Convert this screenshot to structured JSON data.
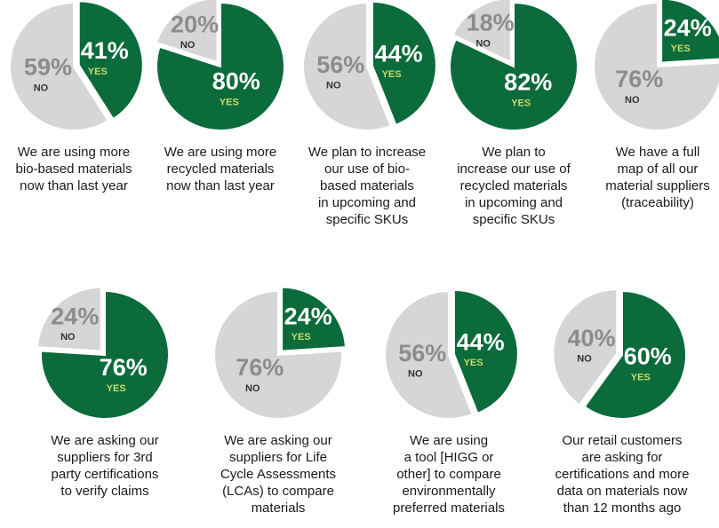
{
  "chart_data": [
    {
      "type": "pie",
      "title": [
        "We are using more",
        "bio-based materials",
        "now than last year"
      ],
      "categories": [
        "YES",
        "NO"
      ],
      "values": [
        41,
        59
      ],
      "value_labels": [
        "41%",
        "59%"
      ],
      "colors": [
        "#0b6b3a",
        "#d6d6d6"
      ]
    },
    {
      "type": "pie",
      "title": [
        "We are using more",
        "recycled materials",
        "now than last year"
      ],
      "categories": [
        "YES",
        "NO"
      ],
      "values": [
        80,
        20
      ],
      "value_labels": [
        "80%",
        "20%"
      ],
      "colors": [
        "#0b6b3a",
        "#d6d6d6"
      ]
    },
    {
      "type": "pie",
      "title": [
        "We plan to increase",
        "our use of bio-",
        "based materials",
        "in upcoming and",
        "specific SKUs"
      ],
      "categories": [
        "YES",
        "NO"
      ],
      "values": [
        44,
        56
      ],
      "value_labels": [
        "44%",
        "56%"
      ],
      "colors": [
        "#0b6b3a",
        "#d6d6d6"
      ]
    },
    {
      "type": "pie",
      "title": [
        "We plan to",
        "increase our use of",
        "recycled materials",
        "in upcoming and",
        "specific SKUs"
      ],
      "categories": [
        "YES",
        "NO"
      ],
      "values": [
        82,
        18
      ],
      "value_labels": [
        "82%",
        "18%"
      ],
      "colors": [
        "#0b6b3a",
        "#d6d6d6"
      ]
    },
    {
      "type": "pie",
      "title": [
        "We have a full",
        "map of all our",
        "material suppliers",
        "(traceability)"
      ],
      "categories": [
        "YES",
        "NO"
      ],
      "values": [
        24,
        76
      ],
      "value_labels": [
        "24%",
        "76%"
      ],
      "colors": [
        "#0b6b3a",
        "#d6d6d6"
      ]
    },
    {
      "type": "pie",
      "title": [
        "We are asking our",
        "suppliers for 3rd",
        "party certifications",
        "to verify claims"
      ],
      "categories": [
        "YES",
        "NO"
      ],
      "values": [
        76,
        24
      ],
      "value_labels": [
        "76%",
        "24%"
      ],
      "colors": [
        "#0b6b3a",
        "#d6d6d6"
      ]
    },
    {
      "type": "pie",
      "title": [
        "We are asking our",
        "suppliers for Life",
        "Cycle Assessments",
        "(LCAs) to compare",
        "materials"
      ],
      "categories": [
        "YES",
        "NO"
      ],
      "values": [
        24,
        76
      ],
      "value_labels": [
        "24%",
        "76%"
      ],
      "colors": [
        "#0b6b3a",
        "#d6d6d6"
      ]
    },
    {
      "type": "pie",
      "title": [
        "We are using",
        "a tool [HIGG or",
        "other] to compare",
        "environmentally",
        "preferred materials"
      ],
      "categories": [
        "YES",
        "NO"
      ],
      "values": [
        44,
        56
      ],
      "value_labels": [
        "44%",
        "56%"
      ],
      "colors": [
        "#0b6b3a",
        "#d6d6d6"
      ]
    },
    {
      "type": "pie",
      "title": [
        "Our retail customers",
        "are asking for",
        "certifications and more",
        "data on materials now",
        "than 12 months ago"
      ],
      "categories": [
        "YES",
        "NO"
      ],
      "values": [
        60,
        40
      ],
      "value_labels": [
        "60%",
        "40%"
      ],
      "colors": [
        "#0b6b3a",
        "#d6d6d6"
      ]
    }
  ]
}
